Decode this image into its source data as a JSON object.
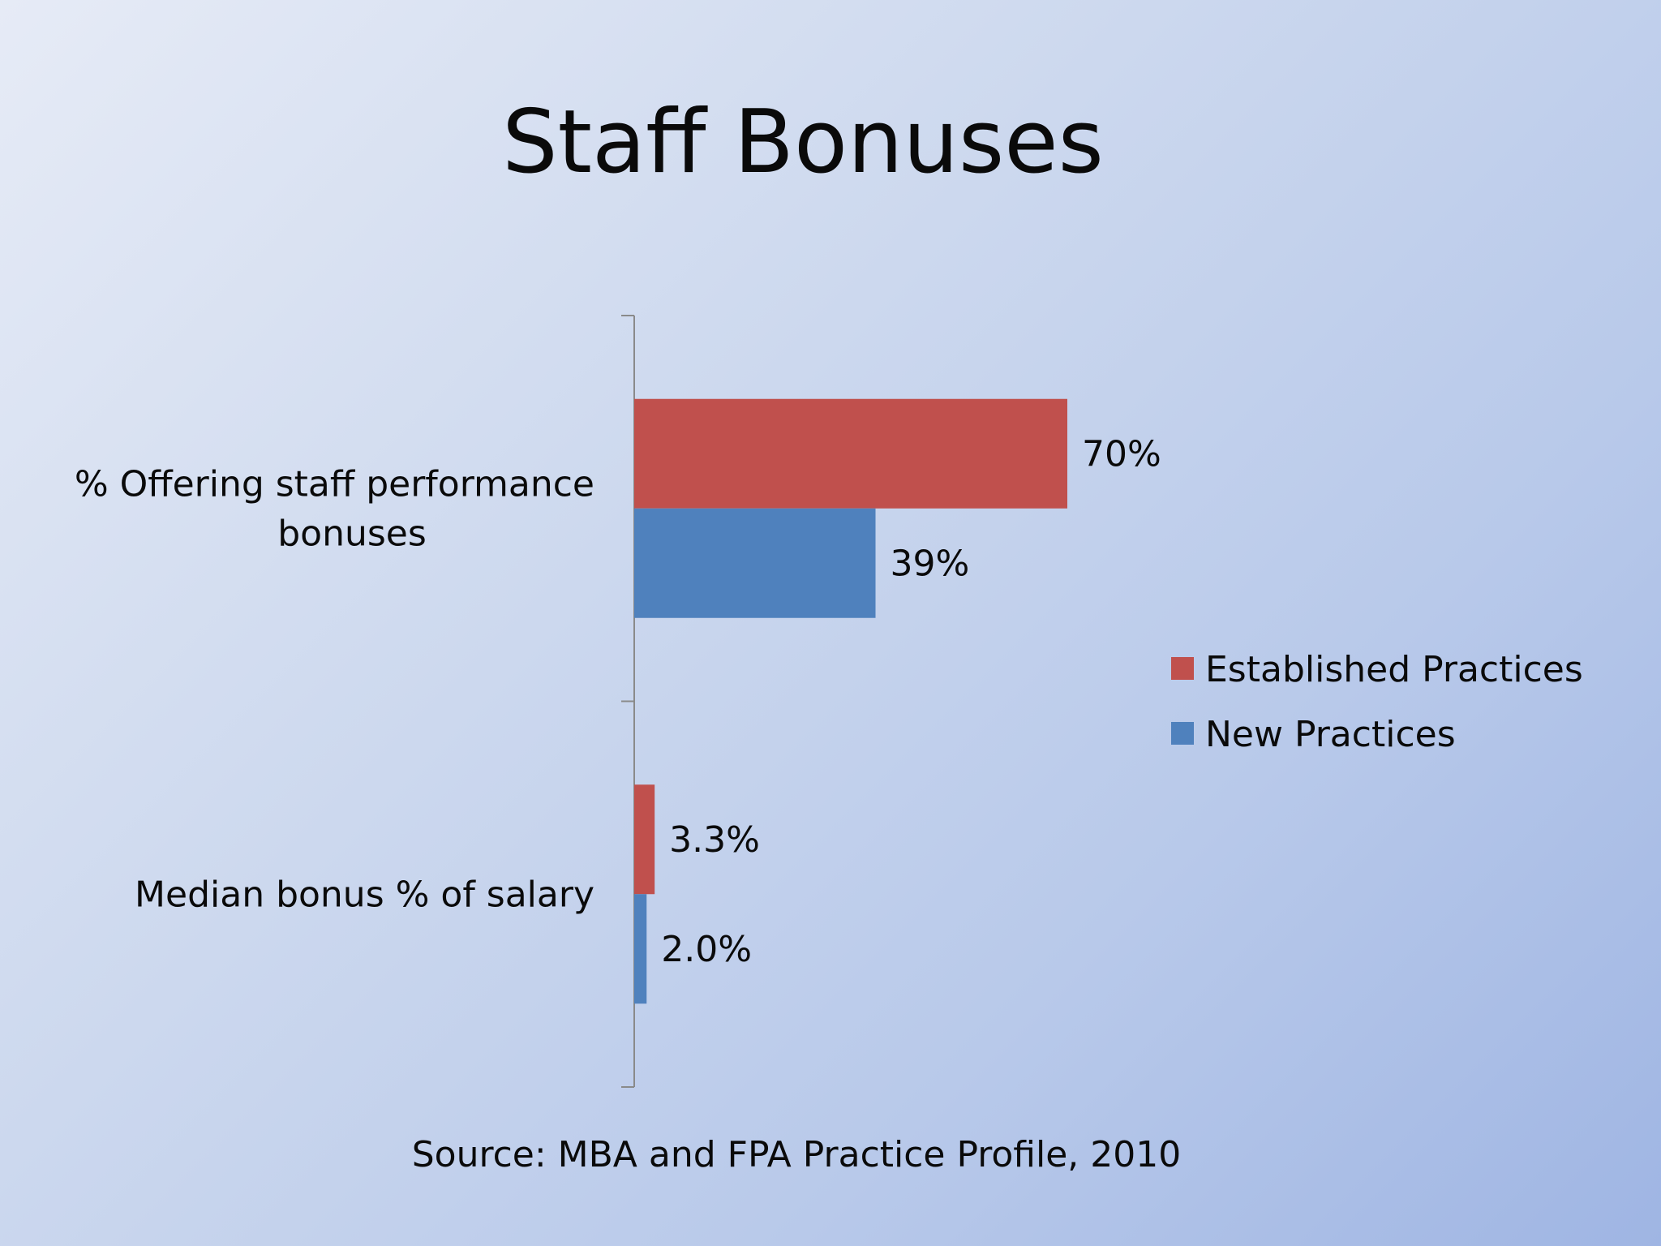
{
  "slide": {
    "title": "Staff Bonuses",
    "source": "Source: MBA and FPA Practice Profile, 2010"
  },
  "chart_data": {
    "type": "bar",
    "orientation": "horizontal",
    "categories": [
      [
        "% Offering staff performance",
        "bonuses"
      ],
      [
        "Median bonus % of salary"
      ]
    ],
    "series": [
      {
        "name": "Established Practices",
        "values": [
          70,
          3.3
        ],
        "labels": [
          "70%",
          "3.3%"
        ],
        "color": "#c0504d"
      },
      {
        "name": "New Practices",
        "values": [
          39,
          2.0
        ],
        "labels": [
          "39%",
          "2.0%"
        ],
        "color": "#4f81bd"
      }
    ],
    "xlim": [
      0,
      100
    ],
    "grid": false,
    "legend": "right",
    "axis_color": "#8a8a8a"
  }
}
